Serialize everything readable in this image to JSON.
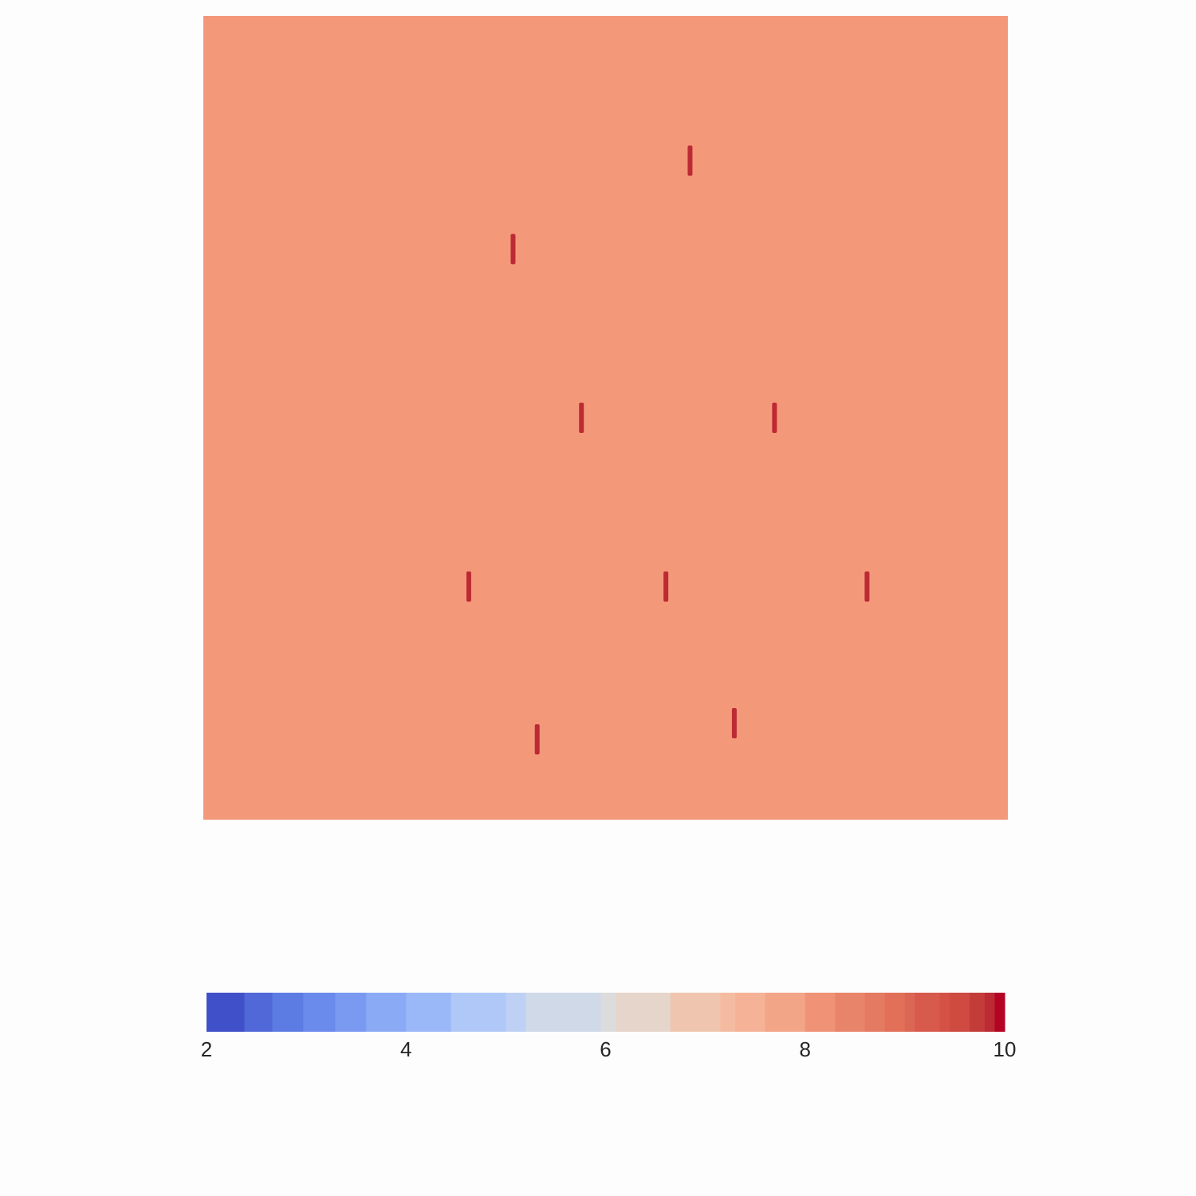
{
  "chart_data": {
    "type": "heatmap",
    "background_value": 7.9,
    "background_color": "#f4987a",
    "marks": [
      {
        "x": 6.05,
        "y": 8.2,
        "value": 9.9
      },
      {
        "x": 3.85,
        "y": 7.1,
        "value": 9.9
      },
      {
        "x": 4.7,
        "y": 5.0,
        "value": 9.9
      },
      {
        "x": 7.1,
        "y": 5.0,
        "value": 9.9
      },
      {
        "x": 3.3,
        "y": 2.9,
        "value": 9.9
      },
      {
        "x": 5.75,
        "y": 2.9,
        "value": 9.9
      },
      {
        "x": 8.25,
        "y": 2.9,
        "value": 9.9
      },
      {
        "x": 4.15,
        "y": 1.0,
        "value": 9.9
      },
      {
        "x": 6.6,
        "y": 1.2,
        "value": 9.9
      }
    ],
    "xlim": [
      0,
      10
    ],
    "ylim": [
      0,
      10
    ],
    "colorbar": {
      "colormap": "coolwarm",
      "range": [
        2,
        10
      ],
      "orientation": "horizontal",
      "ticks": [
        "2",
        "4",
        "6",
        "8",
        "10"
      ],
      "band_boundaries": [
        2,
        2.38,
        2.66,
        2.97,
        3.29,
        3.6,
        4.0,
        4.45,
        5.0,
        5.2,
        5.95,
        6.1,
        6.65,
        7.15,
        7.3,
        7.6,
        8.0,
        8.3,
        8.6,
        8.8,
        9.0,
        9.1,
        9.35,
        9.45,
        9.65,
        9.8,
        9.9,
        10
      ],
      "band_colors": [
        "#4050c8",
        "#5068d8",
        "#5c7ce4",
        "#6a8aec",
        "#7a9af2",
        "#8aaaf6",
        "#9ab8f8",
        "#b0c8f8",
        "#bed0f4",
        "#cfd9e8",
        "#dcdcdc",
        "#e6d5cb",
        "#f0c5af",
        "#f5bba0",
        "#f5b296",
        "#f3a588",
        "#f09276",
        "#e8846a",
        "#e57a62",
        "#e27058",
        "#dc6654",
        "#d85a4c",
        "#d45146",
        "#cf4a40",
        "#c43c3a",
        "#bc2a34",
        "#b40424"
      ]
    }
  }
}
